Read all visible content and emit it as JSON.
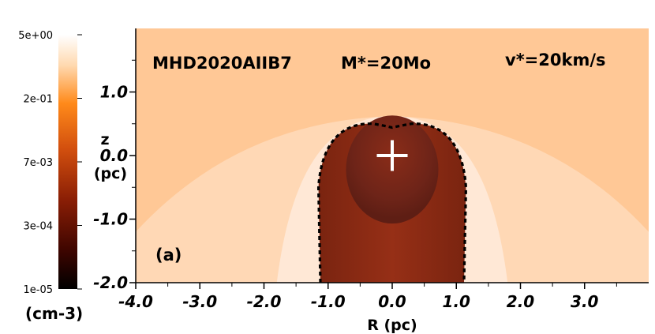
{
  "chart_data": {
    "type": "heatmap",
    "title": "",
    "annotations": {
      "model": "MHD2020AIIB7",
      "mass": "M*=20Mo",
      "velocity": "v*=20km/s",
      "panel": "(a)"
    },
    "xlabel": "R (pc)",
    "ylabel_lines": [
      "z",
      "(pc)"
    ],
    "xlim": [
      -4.0,
      4.0
    ],
    "ylim": [
      -2.0,
      2.0
    ],
    "x_tick_values": [
      -4.0,
      -3.0,
      -2.0,
      -1.0,
      0.0,
      1.0,
      2.0,
      3.0
    ],
    "x_tick_labels": [
      "-4.0",
      "-3.0",
      "-2.0",
      "-1.0",
      "0.0",
      "1.0",
      "2.0",
      "3.0"
    ],
    "y_tick_values": [
      1.0,
      0.0,
      -1.0,
      -2.0
    ],
    "y_tick_labels": [
      "1.0",
      "0.0",
      "-1.0",
      "-2.0"
    ],
    "colorbar": {
      "unit": "(cm-3)",
      "scale": "log",
      "ticks": [
        "5e+00",
        "2e-01",
        "7e-03",
        "3e-04",
        "1e-05"
      ],
      "colormap": [
        "#000000",
        "#3d0500",
        "#8a1e05",
        "#d24f0e",
        "#ff8a1a",
        "#ffc28c",
        "#ffffff"
      ]
    },
    "star_position": [
      0.0,
      0.0
    ],
    "background_color": "#ffc896",
    "wake_color": "#8c2d14",
    "bubble_color": "#6e2418",
    "contour": "dashed"
  }
}
